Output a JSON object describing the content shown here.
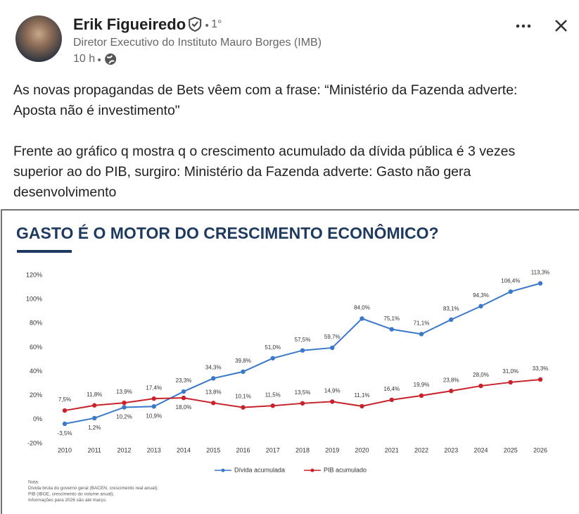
{
  "post": {
    "author": "Erik Figueiredo",
    "degree": "1°",
    "headline": "Diretor Executivo do Instituto Mauro Borges (IMB)",
    "time": "10 h",
    "paragraphs": [
      [
        "As novas propagandas de Bets vêem com a frase: “Ministério da Fazenda adverte:",
        "Aposta não é investimento\""
      ],
      [
        "Frente ao gráfico q mostra q o crescimento acumulado da dívida pública é 3 vezes",
        "superior ao do PIB, surgiro: Ministério da Fazenda adverte: Gasto não gera",
        "desenvolvimento"
      ]
    ]
  },
  "chart_data": {
    "type": "line",
    "title": "GASTO É O MOTOR DO CRESCIMENTO ECONÔMICO?",
    "categories": [
      "2010",
      "2011",
      "2012",
      "2013",
      "2014",
      "2015",
      "2016",
      "2017",
      "2018",
      "2019",
      "2020",
      "2021",
      "2022",
      "2023",
      "2024",
      "2025",
      "2026"
    ],
    "series": [
      {
        "name": "Dívida acumulada",
        "color": "#3a78c9",
        "values": [
          -3.5,
          1.2,
          10.2,
          10.9,
          23.3,
          34.3,
          39.8,
          51.0,
          57.5,
          59.7,
          84.0,
          75.1,
          71.1,
          83.1,
          94.3,
          106.4,
          113.3
        ],
        "value_labels": [
          "-3,5%",
          "1,2%",
          "10,2%",
          "10,9%",
          "23,3%",
          "34,3%",
          "39,8%",
          "51,0%",
          "57,5%",
          "59,7%",
          "84,0%",
          "75,1%",
          "71,1%",
          "83,1%",
          "94,3%",
          "106,4%",
          "113,3%"
        ]
      },
      {
        "name": "PIB acumulado",
        "color": "#c8232b",
        "values": [
          7.5,
          11.8,
          13.9,
          17.4,
          18.0,
          13.8,
          10.1,
          11.5,
          13.5,
          14.9,
          11.1,
          16.4,
          19.9,
          23.8,
          28.0,
          31.0,
          33.3
        ],
        "value_labels": [
          "7,5%",
          "11,8%",
          "13,9%",
          "17,4%",
          "18,0%",
          "13,8%",
          "10,1%",
          "11,5%",
          "13,5%",
          "14,9%",
          "11,1%",
          "16,4%",
          "19,9%",
          "23,8%",
          "28,0%",
          "31,0%",
          "33,3%"
        ]
      }
    ],
    "ylim": [
      -20,
      120
    ],
    "yticks": [
      {
        "value": -20,
        "label": "-20%"
      },
      {
        "value": 0,
        "label": "0%"
      },
      {
        "value": 20,
        "label": "20%"
      },
      {
        "value": 40,
        "label": "40%"
      },
      {
        "value": 60,
        "label": "60%"
      },
      {
        "value": 80,
        "label": "80%"
      },
      {
        "value": 100,
        "label": "100%"
      },
      {
        "value": 120,
        "label": "120%"
      }
    ],
    "notes": [
      "Nota:",
      "Dívida bruta do governo geral (BACEN, crescimento real anual);",
      "PIB (IBGE, crescimento do volume anual);",
      "Informações para 2026 são até março."
    ]
  }
}
